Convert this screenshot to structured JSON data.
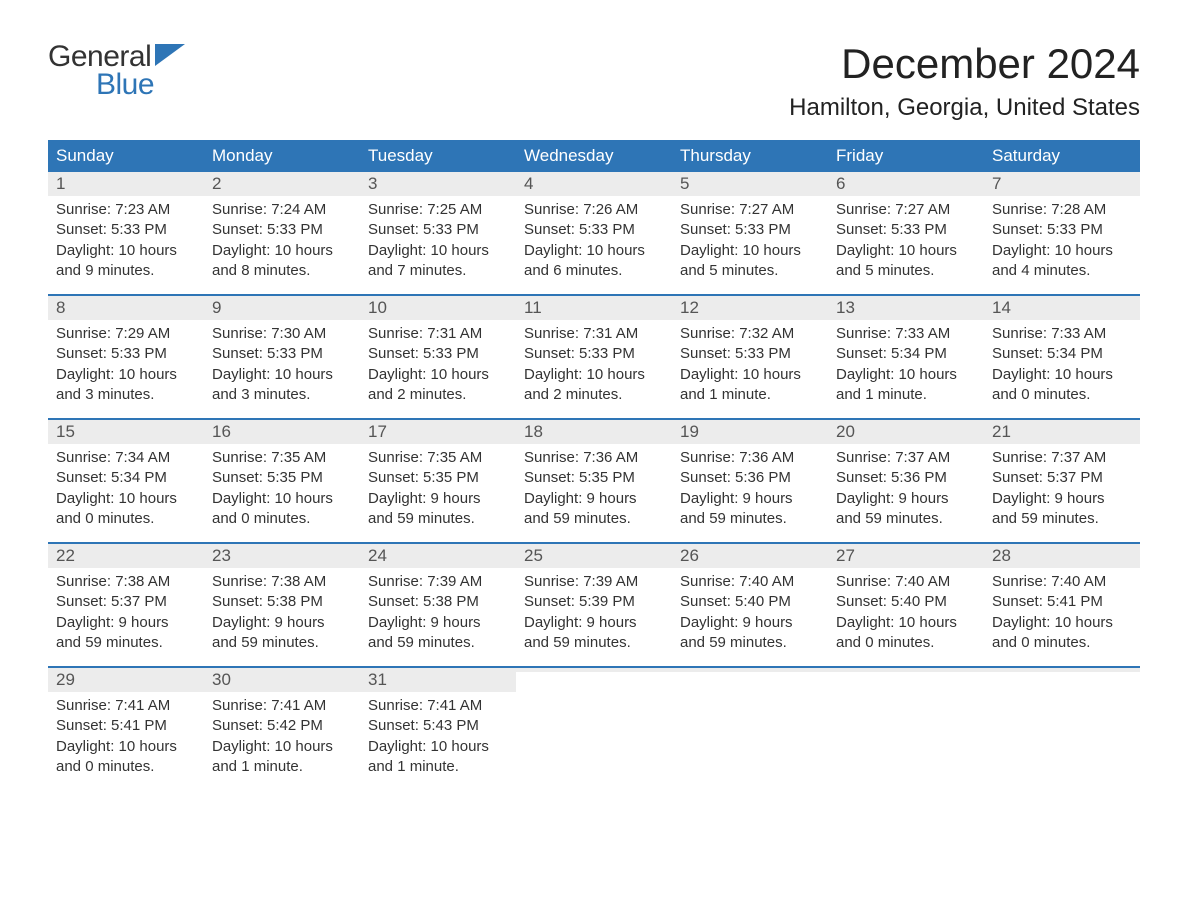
{
  "brand": {
    "word1": "General",
    "word2": "Blue",
    "word1_color": "#333333",
    "word2_color": "#2e75b6",
    "flag_color": "#2e75b6",
    "fontsize": 30
  },
  "title": {
    "month_year": "December 2024",
    "month_fontsize": 42,
    "location": "Hamilton, Georgia, United States",
    "location_fontsize": 24,
    "text_color": "#222222"
  },
  "calendar": {
    "header_bg": "#2e75b6",
    "header_text_color": "#ffffff",
    "header_fontsize": 17,
    "daynum_bg": "#ececec",
    "daynum_color": "#555555",
    "daynum_fontsize": 17,
    "body_fontsize": 15,
    "body_color": "#333333",
    "week_divider_color": "#2e75b6",
    "weekdays": [
      "Sunday",
      "Monday",
      "Tuesday",
      "Wednesday",
      "Thursday",
      "Friday",
      "Saturday"
    ],
    "weeks": [
      [
        {
          "n": "1",
          "sunrise": "Sunrise: 7:23 AM",
          "sunset": "Sunset: 5:33 PM",
          "day1": "Daylight: 10 hours",
          "day2": "and 9 minutes."
        },
        {
          "n": "2",
          "sunrise": "Sunrise: 7:24 AM",
          "sunset": "Sunset: 5:33 PM",
          "day1": "Daylight: 10 hours",
          "day2": "and 8 minutes."
        },
        {
          "n": "3",
          "sunrise": "Sunrise: 7:25 AM",
          "sunset": "Sunset: 5:33 PM",
          "day1": "Daylight: 10 hours",
          "day2": "and 7 minutes."
        },
        {
          "n": "4",
          "sunrise": "Sunrise: 7:26 AM",
          "sunset": "Sunset: 5:33 PM",
          "day1": "Daylight: 10 hours",
          "day2": "and 6 minutes."
        },
        {
          "n": "5",
          "sunrise": "Sunrise: 7:27 AM",
          "sunset": "Sunset: 5:33 PM",
          "day1": "Daylight: 10 hours",
          "day2": "and 5 minutes."
        },
        {
          "n": "6",
          "sunrise": "Sunrise: 7:27 AM",
          "sunset": "Sunset: 5:33 PM",
          "day1": "Daylight: 10 hours",
          "day2": "and 5 minutes."
        },
        {
          "n": "7",
          "sunrise": "Sunrise: 7:28 AM",
          "sunset": "Sunset: 5:33 PM",
          "day1": "Daylight: 10 hours",
          "day2": "and 4 minutes."
        }
      ],
      [
        {
          "n": "8",
          "sunrise": "Sunrise: 7:29 AM",
          "sunset": "Sunset: 5:33 PM",
          "day1": "Daylight: 10 hours",
          "day2": "and 3 minutes."
        },
        {
          "n": "9",
          "sunrise": "Sunrise: 7:30 AM",
          "sunset": "Sunset: 5:33 PM",
          "day1": "Daylight: 10 hours",
          "day2": "and 3 minutes."
        },
        {
          "n": "10",
          "sunrise": "Sunrise: 7:31 AM",
          "sunset": "Sunset: 5:33 PM",
          "day1": "Daylight: 10 hours",
          "day2": "and 2 minutes."
        },
        {
          "n": "11",
          "sunrise": "Sunrise: 7:31 AM",
          "sunset": "Sunset: 5:33 PM",
          "day1": "Daylight: 10 hours",
          "day2": "and 2 minutes."
        },
        {
          "n": "12",
          "sunrise": "Sunrise: 7:32 AM",
          "sunset": "Sunset: 5:33 PM",
          "day1": "Daylight: 10 hours",
          "day2": "and 1 minute."
        },
        {
          "n": "13",
          "sunrise": "Sunrise: 7:33 AM",
          "sunset": "Sunset: 5:34 PM",
          "day1": "Daylight: 10 hours",
          "day2": "and 1 minute."
        },
        {
          "n": "14",
          "sunrise": "Sunrise: 7:33 AM",
          "sunset": "Sunset: 5:34 PM",
          "day1": "Daylight: 10 hours",
          "day2": "and 0 minutes."
        }
      ],
      [
        {
          "n": "15",
          "sunrise": "Sunrise: 7:34 AM",
          "sunset": "Sunset: 5:34 PM",
          "day1": "Daylight: 10 hours",
          "day2": "and 0 minutes."
        },
        {
          "n": "16",
          "sunrise": "Sunrise: 7:35 AM",
          "sunset": "Sunset: 5:35 PM",
          "day1": "Daylight: 10 hours",
          "day2": "and 0 minutes."
        },
        {
          "n": "17",
          "sunrise": "Sunrise: 7:35 AM",
          "sunset": "Sunset: 5:35 PM",
          "day1": "Daylight: 9 hours",
          "day2": "and 59 minutes."
        },
        {
          "n": "18",
          "sunrise": "Sunrise: 7:36 AM",
          "sunset": "Sunset: 5:35 PM",
          "day1": "Daylight: 9 hours",
          "day2": "and 59 minutes."
        },
        {
          "n": "19",
          "sunrise": "Sunrise: 7:36 AM",
          "sunset": "Sunset: 5:36 PM",
          "day1": "Daylight: 9 hours",
          "day2": "and 59 minutes."
        },
        {
          "n": "20",
          "sunrise": "Sunrise: 7:37 AM",
          "sunset": "Sunset: 5:36 PM",
          "day1": "Daylight: 9 hours",
          "day2": "and 59 minutes."
        },
        {
          "n": "21",
          "sunrise": "Sunrise: 7:37 AM",
          "sunset": "Sunset: 5:37 PM",
          "day1": "Daylight: 9 hours",
          "day2": "and 59 minutes."
        }
      ],
      [
        {
          "n": "22",
          "sunrise": "Sunrise: 7:38 AM",
          "sunset": "Sunset: 5:37 PM",
          "day1": "Daylight: 9 hours",
          "day2": "and 59 minutes."
        },
        {
          "n": "23",
          "sunrise": "Sunrise: 7:38 AM",
          "sunset": "Sunset: 5:38 PM",
          "day1": "Daylight: 9 hours",
          "day2": "and 59 minutes."
        },
        {
          "n": "24",
          "sunrise": "Sunrise: 7:39 AM",
          "sunset": "Sunset: 5:38 PM",
          "day1": "Daylight: 9 hours",
          "day2": "and 59 minutes."
        },
        {
          "n": "25",
          "sunrise": "Sunrise: 7:39 AM",
          "sunset": "Sunset: 5:39 PM",
          "day1": "Daylight: 9 hours",
          "day2": "and 59 minutes."
        },
        {
          "n": "26",
          "sunrise": "Sunrise: 7:40 AM",
          "sunset": "Sunset: 5:40 PM",
          "day1": "Daylight: 9 hours",
          "day2": "and 59 minutes."
        },
        {
          "n": "27",
          "sunrise": "Sunrise: 7:40 AM",
          "sunset": "Sunset: 5:40 PM",
          "day1": "Daylight: 10 hours",
          "day2": "and 0 minutes."
        },
        {
          "n": "28",
          "sunrise": "Sunrise: 7:40 AM",
          "sunset": "Sunset: 5:41 PM",
          "day1": "Daylight: 10 hours",
          "day2": "and 0 minutes."
        }
      ],
      [
        {
          "n": "29",
          "sunrise": "Sunrise: 7:41 AM",
          "sunset": "Sunset: 5:41 PM",
          "day1": "Daylight: 10 hours",
          "day2": "and 0 minutes."
        },
        {
          "n": "30",
          "sunrise": "Sunrise: 7:41 AM",
          "sunset": "Sunset: 5:42 PM",
          "day1": "Daylight: 10 hours",
          "day2": "and 1 minute."
        },
        {
          "n": "31",
          "sunrise": "Sunrise: 7:41 AM",
          "sunset": "Sunset: 5:43 PM",
          "day1": "Daylight: 10 hours",
          "day2": "and 1 minute."
        },
        {
          "n": "",
          "sunrise": "",
          "sunset": "",
          "day1": "",
          "day2": ""
        },
        {
          "n": "",
          "sunrise": "",
          "sunset": "",
          "day1": "",
          "day2": ""
        },
        {
          "n": "",
          "sunrise": "",
          "sunset": "",
          "day1": "",
          "day2": ""
        },
        {
          "n": "",
          "sunrise": "",
          "sunset": "",
          "day1": "",
          "day2": ""
        }
      ]
    ]
  }
}
